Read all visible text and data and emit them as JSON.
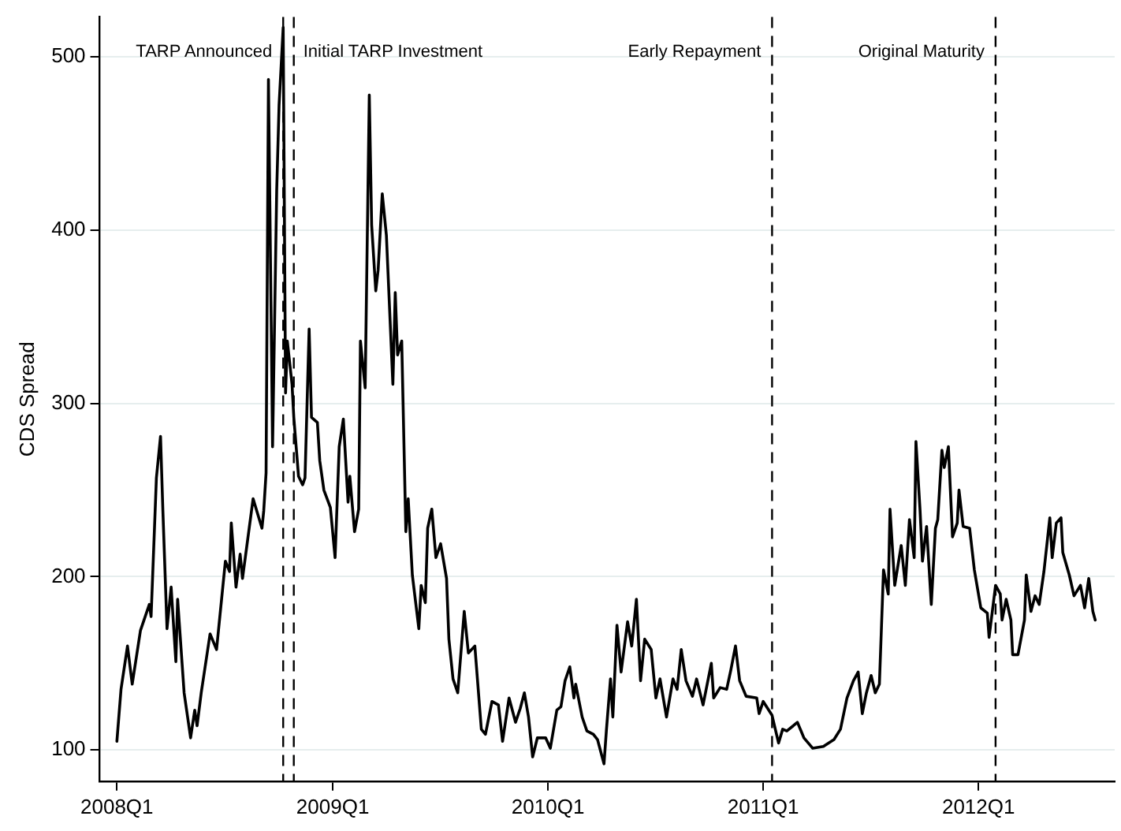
{
  "chart_data": {
    "type": "line",
    "ylabel": "CDS Spread",
    "x": [
      "2008-01-01",
      "2008-01-08",
      "2008-01-19",
      "2008-01-27",
      "2008-02-10",
      "2008-02-25",
      "2008-02-28",
      "2008-03-08",
      "2008-03-15",
      "2008-03-19",
      "2008-03-26",
      "2008-04-02",
      "2008-04-10",
      "2008-04-13",
      "2008-04-24",
      "2008-05-05",
      "2008-05-12",
      "2008-05-16",
      "2008-05-23",
      "2008-06-07",
      "2008-06-18",
      "2008-07-03",
      "2008-07-10",
      "2008-07-13",
      "2008-07-21",
      "2008-07-28",
      "2008-08-01",
      "2008-08-19",
      "2008-09-03",
      "2008-09-06",
      "2008-09-10",
      "2008-09-14",
      "2008-09-21",
      "2008-09-28",
      "2008-10-02",
      "2008-10-09",
      "2008-10-13",
      "2008-10-16",
      "2008-10-24",
      "2008-10-27",
      "2008-11-04",
      "2008-11-11",
      "2008-11-15",
      "2008-11-22",
      "2008-11-26",
      "2008-12-06",
      "2008-12-10",
      "2008-12-17",
      "2008-12-28",
      "2009-01-05",
      "2009-01-12",
      "2009-01-19",
      "2009-01-27",
      "2009-01-30",
      "2009-02-07",
      "2009-02-14",
      "2009-02-17",
      "2009-02-25",
      "2009-03-04",
      "2009-03-08",
      "2009-03-15",
      "2009-03-19",
      "2009-03-26",
      "2009-04-02",
      "2009-04-13",
      "2009-04-17",
      "2009-04-21",
      "2009-04-28",
      "2009-05-05",
      "2009-05-09",
      "2009-05-16",
      "2009-05-27",
      "2009-05-31",
      "2009-06-07",
      "2009-06-11",
      "2009-06-18",
      "2009-06-25",
      "2009-07-03",
      "2009-07-13",
      "2009-07-17",
      "2009-07-24",
      "2009-08-01",
      "2009-08-12",
      "2009-08-19",
      "2009-08-30",
      "2009-09-10",
      "2009-09-17",
      "2009-09-28",
      "2009-10-09",
      "2009-10-16",
      "2009-10-27",
      "2009-11-07",
      "2009-11-15",
      "2009-11-22",
      "2009-11-29",
      "2009-12-06",
      "2009-12-14",
      "2009-12-28",
      "2010-01-05",
      "2010-01-16",
      "2010-01-23",
      "2010-01-30",
      "2010-02-07",
      "2010-02-14",
      "2010-02-17",
      "2010-02-28",
      "2010-03-08",
      "2010-03-19",
      "2010-03-26",
      "2010-04-06",
      "2010-04-10",
      "2010-04-17",
      "2010-04-21",
      "2010-04-28",
      "2010-05-05",
      "2010-05-16",
      "2010-05-23",
      "2010-05-31",
      "2010-06-07",
      "2010-06-14",
      "2010-06-25",
      "2010-07-03",
      "2010-07-10",
      "2010-07-21",
      "2010-08-01",
      "2010-08-08",
      "2010-08-15",
      "2010-08-23",
      "2010-09-03",
      "2010-09-10",
      "2010-09-21",
      "2010-10-05",
      "2010-10-09",
      "2010-10-20",
      "2010-10-31",
      "2010-11-07",
      "2010-11-15",
      "2010-11-22",
      "2010-12-03",
      "2010-12-21",
      "2010-12-25",
      "2011-01-01",
      "2011-01-16",
      "2011-01-27",
      "2011-02-03",
      "2011-02-10",
      "2011-02-21",
      "2011-02-28",
      "2011-03-11",
      "2011-03-26",
      "2011-04-13",
      "2011-05-01",
      "2011-05-12",
      "2011-05-23",
      "2011-06-03",
      "2011-06-11",
      "2011-06-18",
      "2011-06-25",
      "2011-07-03",
      "2011-07-10",
      "2011-07-17",
      "2011-07-24",
      "2011-08-01",
      "2011-08-04",
      "2011-08-12",
      "2011-08-23",
      "2011-08-30",
      "2011-09-06",
      "2011-09-14",
      "2011-09-17",
      "2011-09-24",
      "2011-09-28",
      "2011-10-05",
      "2011-10-13",
      "2011-10-20",
      "2011-10-24",
      "2011-10-31",
      "2011-11-04",
      "2011-11-11",
      "2011-11-18",
      "2011-11-26",
      "2011-11-29",
      "2011-12-06",
      "2011-12-17",
      "2011-12-25",
      "2012-01-05",
      "2012-01-16",
      "2012-01-19",
      "2012-01-30",
      "2012-02-07",
      "2012-02-10",
      "2012-02-17",
      "2012-02-25",
      "2012-02-28",
      "2012-03-08",
      "2012-03-19",
      "2012-03-22",
      "2012-03-30",
      "2012-04-06",
      "2012-04-13",
      "2012-04-21",
      "2012-05-01",
      "2012-05-05",
      "2012-05-12",
      "2012-05-20",
      "2012-05-23",
      "2012-06-03",
      "2012-06-11",
      "2012-06-22",
      "2012-06-29",
      "2012-07-06",
      "2012-07-13",
      "2012-07-17"
    ],
    "series": [
      {
        "color": "#000000",
        "values": [
          105,
          135,
          160,
          138,
          169,
          184,
          177,
          257,
          281,
          238,
          170,
          194,
          151,
          187,
          133,
          107,
          123,
          114,
          133,
          167,
          158,
          209,
          203,
          231,
          194,
          213,
          199,
          245,
          228,
          238,
          260,
          487,
          275,
          423,
          472,
          517,
          306,
          336,
          311,
          292,
          258,
          253,
          257,
          343,
          292,
          289,
          267,
          250,
          240,
          211,
          275,
          291,
          243,
          258,
          226,
          239,
          336,
          309,
          478,
          403,
          365,
          377,
          421,
          397,
          311,
          364,
          328,
          336,
          226,
          245,
          201,
          170,
          195,
          185,
          228,
          239,
          211,
          219,
          199,
          164,
          141,
          133,
          180,
          156,
          160,
          112,
          109,
          128,
          126,
          105,
          130,
          116,
          124,
          133,
          119,
          96,
          107,
          107,
          101,
          123,
          125,
          140,
          148,
          130,
          138,
          119,
          111,
          109,
          106,
          92,
          111,
          141,
          119,
          172,
          145,
          174,
          160,
          187,
          140,
          164,
          158,
          130,
          141,
          119,
          141,
          135,
          158,
          140,
          131,
          141,
          126,
          150,
          130,
          136,
          135,
          146,
          160,
          140,
          131,
          130,
          121,
          128,
          120,
          104,
          112,
          111,
          114,
          116,
          107,
          101,
          102,
          106,
          112,
          130,
          140,
          145,
          121,
          133,
          143,
          133,
          138,
          204,
          190,
          239,
          195,
          218,
          195,
          233,
          211,
          278,
          238,
          209,
          229,
          184,
          228,
          233,
          273,
          263,
          275,
          223,
          231,
          250,
          229,
          228,
          204,
          182,
          179,
          165,
          195,
          190,
          175,
          187,
          175,
          155,
          155,
          175,
          201,
          180,
          189,
          184,
          203,
          234,
          211,
          231,
          234,
          214,
          201,
          189,
          195,
          182,
          199,
          180,
          175
        ]
      }
    ],
    "xlim": [
      "2007-12-03",
      "2012-08-19"
    ],
    "ylim": [
      82,
      523
    ],
    "xticks": [
      {
        "value": "2008-01-01",
        "label": "2008Q1"
      },
      {
        "value": "2009-01-01",
        "label": "2009Q1"
      },
      {
        "value": "2010-01-01",
        "label": "2010Q1"
      },
      {
        "value": "2011-01-01",
        "label": "2011Q1"
      },
      {
        "value": "2012-01-01",
        "label": "2012Q1"
      }
    ],
    "yticks": [
      100,
      200,
      300,
      400,
      500
    ],
    "grid": "y",
    "legend": false,
    "marker": "none",
    "line_style": "solid",
    "ref_lines": [
      {
        "axis": "x",
        "value": "2008-10-09",
        "label": "TARP Announced",
        "color": "#000000",
        "line_style": "dashed"
      },
      {
        "axis": "x",
        "value": "2008-10-27",
        "label": "Initial TARP Investment",
        "color": "#000000",
        "line_style": "dashed"
      },
      {
        "axis": "x",
        "value": "2011-01-16",
        "label": "Early Repayment",
        "color": "#000000",
        "line_style": "dashed"
      },
      {
        "axis": "x",
        "value": "2012-01-30",
        "label": "Original Maturity",
        "color": "#000000",
        "line_style": "dashed"
      }
    ]
  }
}
